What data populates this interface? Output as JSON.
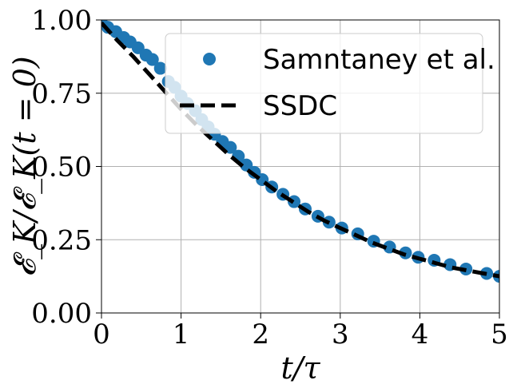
{
  "chart_data": {
    "type": "line",
    "xlabel": "t/τ",
    "ylabel": "𝓔_K/𝓔_K(t = 0)",
    "xlim": [
      0,
      5
    ],
    "ylim": [
      0,
      1.0
    ],
    "xticks": [
      "0",
      "1",
      "2",
      "3",
      "4",
      "5"
    ],
    "yticks": [
      "0.00",
      "0.25",
      "0.50",
      "0.75",
      "1.00"
    ],
    "grid": true,
    "legend_position": "top-right",
    "series": [
      {
        "name": "Samntaney et al.",
        "style": "scatter",
        "color": "#1f77b4",
        "x": [
          0.0,
          0.08,
          0.18,
          0.28,
          0.36,
          0.46,
          0.56,
          0.64,
          0.74,
          0.84,
          0.92,
          1.0,
          1.08,
          1.18,
          1.26,
          1.34,
          1.42,
          1.52,
          1.62,
          1.72,
          1.82,
          1.92,
          2.02,
          2.14,
          2.28,
          2.42,
          2.56,
          2.72,
          2.86,
          3.02,
          3.22,
          3.42,
          3.62,
          3.82,
          3.98,
          4.18,
          4.38,
          4.58,
          4.84,
          5.0
        ],
        "y": [
          0.99,
          0.975,
          0.96,
          0.94,
          0.925,
          0.905,
          0.88,
          0.865,
          0.835,
          0.79,
          0.77,
          0.74,
          0.715,
          0.69,
          0.66,
          0.635,
          0.61,
          0.585,
          0.565,
          0.535,
          0.505,
          0.48,
          0.455,
          0.43,
          0.405,
          0.38,
          0.355,
          0.33,
          0.31,
          0.29,
          0.27,
          0.245,
          0.225,
          0.205,
          0.19,
          0.18,
          0.165,
          0.15,
          0.135,
          0.125
        ]
      },
      {
        "name": "SSDC",
        "style": "dashed-line",
        "color": "#000000",
        "x": [
          0.0,
          0.2,
          0.4,
          0.6,
          0.8,
          1.0,
          1.2,
          1.4,
          1.6,
          1.8,
          2.0,
          2.2,
          2.4,
          2.6,
          2.8,
          3.0,
          3.2,
          3.4,
          3.6,
          3.8,
          4.0,
          4.2,
          4.4,
          4.6,
          4.8,
          5.0
        ],
        "y": [
          0.99,
          0.93,
          0.875,
          0.815,
          0.755,
          0.695,
          0.64,
          0.59,
          0.54,
          0.495,
          0.455,
          0.415,
          0.38,
          0.345,
          0.315,
          0.29,
          0.265,
          0.24,
          0.22,
          0.2,
          0.185,
          0.17,
          0.155,
          0.145,
          0.135,
          0.125
        ]
      }
    ]
  }
}
